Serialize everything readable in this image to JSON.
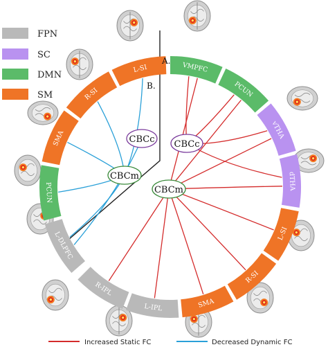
{
  "legend": [
    {
      "label": "FPN",
      "color": "#b9b9b9"
    },
    {
      "label": "SC",
      "color": "#b992f0"
    },
    {
      "label": "DMN",
      "color": "#5bbb69"
    },
    {
      "label": "SM",
      "color": "#ef7426"
    }
  ],
  "panels": {
    "a": "A.",
    "b": "B."
  },
  "nodes": {
    "cbcc": "CBCc",
    "cbcm": "CBCm"
  },
  "segments_a": [
    {
      "label": "VMPFC",
      "network": "DMN"
    },
    {
      "label": "PCUN",
      "network": "DMN"
    },
    {
      "label": "vTHA",
      "network": "SC"
    },
    {
      "label": "dTHA",
      "network": "SC"
    },
    {
      "label": "L-SI",
      "network": "SM"
    },
    {
      "label": "R-SI",
      "network": "SM"
    },
    {
      "label": "SMA",
      "network": "SM"
    },
    {
      "label": "L-IPL",
      "network": "FPN"
    },
    {
      "label": "R-IPL",
      "network": "FPN"
    }
  ],
  "segments_b": [
    {
      "label": "L-DLPFC",
      "network": "FPN"
    },
    {
      "label": "PCUN",
      "network": "DMN"
    },
    {
      "label": "SMA",
      "network": "SM"
    },
    {
      "label": "R-SI",
      "network": "SM"
    },
    {
      "label": "L-SI",
      "network": "SM"
    }
  ],
  "connections_a": [
    {
      "from": "CBCc",
      "to": "VMPFC"
    },
    {
      "from": "CBCc",
      "to": "PCUN"
    },
    {
      "from": "CBCc",
      "to": "vTHA"
    },
    {
      "from": "CBCc",
      "to": "dTHA"
    },
    {
      "from": "CBCm",
      "to": "VMPFC"
    },
    {
      "from": "CBCm",
      "to": "PCUN"
    },
    {
      "from": "CBCm",
      "to": "vTHA"
    },
    {
      "from": "CBCm",
      "to": "dTHA"
    },
    {
      "from": "CBCm",
      "to": "L-SI"
    },
    {
      "from": "CBCm",
      "to": "R-SI"
    },
    {
      "from": "CBCm",
      "to": "SMA"
    },
    {
      "from": "CBCm",
      "to": "L-IPL"
    },
    {
      "from": "CBCm",
      "to": "R-IPL"
    }
  ],
  "connections_b": [
    {
      "from": "CBCc",
      "to": "L-DLPFC"
    },
    {
      "from": "CBCm",
      "to": "L-DLPFC"
    },
    {
      "from": "CBCm",
      "to": "PCUN"
    },
    {
      "from": "CBCm",
      "to": "SMA"
    },
    {
      "from": "CBCm",
      "to": "R-SI"
    },
    {
      "from": "CBCm",
      "to": "L-SI"
    }
  ],
  "line_legend": [
    {
      "label": "Increased Static FC",
      "color": "#d42b2b"
    },
    {
      "label": "Decreased Dynamic FC",
      "color": "#2aa0d8"
    }
  ],
  "colors": {
    "FPN": "#b9b9b9",
    "SC": "#b992f0",
    "DMN": "#5bbb69",
    "SM": "#ef7426",
    "static": "#d42b2b",
    "dynamic": "#2aa0d8"
  }
}
